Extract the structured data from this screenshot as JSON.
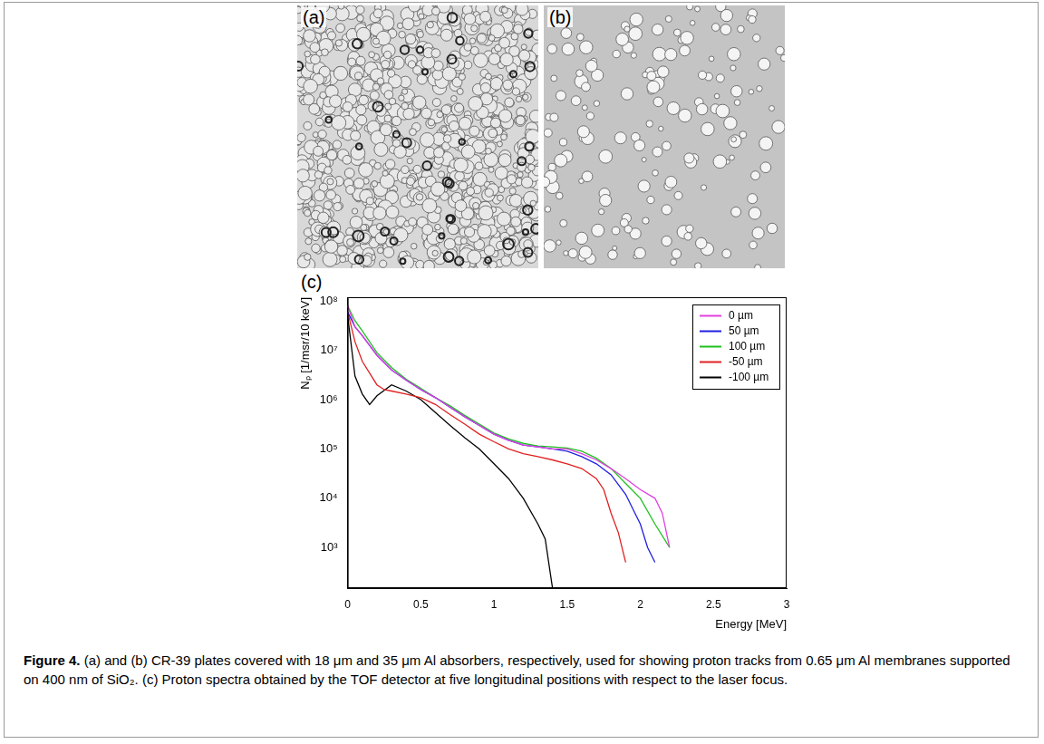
{
  "panels": [
    {
      "label": "(a)"
    },
    {
      "label": "(b)"
    }
  ],
  "chart_label": "(c)",
  "chart_data": {
    "type": "line",
    "x_label": "Energy [MeV]",
    "y_label": "Nₚ [1/msr/10 keV]",
    "xlim": [
      0,
      3
    ],
    "xticks": [
      0,
      0.5,
      1,
      1.5,
      2,
      2.5,
      3
    ],
    "ylim": [
      150,
      120000000
    ],
    "yticks": [
      {
        "value": 1000,
        "label": "10³"
      },
      {
        "value": 10000,
        "label": "10⁴"
      },
      {
        "value": 100000,
        "label": "10⁵"
      },
      {
        "value": 1000000,
        "label": "10⁶"
      },
      {
        "value": 10000000,
        "label": "10⁷"
      },
      {
        "value": 100000000,
        "label": "10⁸"
      }
    ],
    "log": "y",
    "grid": false,
    "legend": "upper right",
    "series": [
      {
        "name": "0 µm",
        "color": "#e040e0",
        "x": [
          0,
          0.05,
          0.1,
          0.2,
          0.3,
          0.4,
          0.5,
          0.6,
          0.7,
          0.8,
          0.9,
          1.0,
          1.1,
          1.2,
          1.3,
          1.4,
          1.5,
          1.6,
          1.7,
          1.8,
          1.9,
          2.0,
          2.1,
          2.15,
          2.2
        ],
        "values": [
          80000000,
          30000000,
          20000000,
          8000000,
          4000000,
          2500000,
          1600000,
          1100000,
          700000,
          450000,
          300000,
          200000,
          150000,
          120000,
          110000,
          100000,
          100000,
          80000,
          60000,
          40000,
          25000,
          15000,
          10000,
          5000,
          1000
        ]
      },
      {
        "name": "50 µm",
        "color": "#2020e0",
        "x": [
          0,
          0.05,
          0.1,
          0.2,
          0.3,
          0.4,
          0.5,
          0.6,
          0.7,
          0.8,
          0.9,
          1.0,
          1.1,
          1.2,
          1.3,
          1.4,
          1.5,
          1.6,
          1.7,
          1.8,
          1.9,
          2.0,
          2.05,
          2.1
        ],
        "values": [
          60000000,
          30000000,
          20000000,
          8000000,
          4000000,
          2500000,
          1600000,
          1100000,
          700000,
          450000,
          300000,
          200000,
          150000,
          120000,
          110000,
          100000,
          90000,
          70000,
          50000,
          30000,
          12000,
          3000,
          1000,
          500
        ]
      },
      {
        "name": "100 µm",
        "color": "#20c020",
        "x": [
          0,
          0.05,
          0.1,
          0.2,
          0.3,
          0.4,
          0.5,
          0.6,
          0.7,
          0.8,
          0.9,
          1.0,
          1.1,
          1.2,
          1.3,
          1.4,
          1.5,
          1.6,
          1.7,
          1.8,
          1.9,
          2.0,
          2.1,
          2.2
        ],
        "values": [
          80000000,
          40000000,
          25000000,
          9000000,
          4500000,
          2600000,
          1700000,
          1100000,
          750000,
          480000,
          320000,
          210000,
          160000,
          130000,
          115000,
          110000,
          105000,
          90000,
          65000,
          40000,
          20000,
          10000,
          3000,
          1000
        ]
      },
      {
        "name": "-50 µm",
        "color": "#e02020",
        "x": [
          0,
          0.05,
          0.1,
          0.2,
          0.25,
          0.3,
          0.4,
          0.5,
          0.6,
          0.7,
          0.8,
          0.9,
          1.0,
          1.1,
          1.2,
          1.3,
          1.4,
          1.5,
          1.6,
          1.7,
          1.75,
          1.8,
          1.85,
          1.9
        ],
        "values": [
          60000000,
          15000000,
          6000000,
          2000000,
          1600000,
          1500000,
          1300000,
          1100000,
          800000,
          500000,
          320000,
          200000,
          140000,
          100000,
          80000,
          70000,
          60000,
          50000,
          40000,
          25000,
          15000,
          5000,
          2000,
          500
        ]
      },
      {
        "name": "-100 µm",
        "color": "#000000",
        "x": [
          0,
          0.05,
          0.1,
          0.15,
          0.2,
          0.3,
          0.4,
          0.5,
          0.6,
          0.7,
          0.8,
          0.9,
          1.0,
          1.1,
          1.2,
          1.3,
          1.35,
          1.4
        ],
        "values": [
          50000000,
          3000000,
          1300000,
          800000,
          1200000,
          2000000,
          1500000,
          1000000,
          550000,
          300000,
          170000,
          100000,
          50000,
          25000,
          10000,
          3000,
          1500,
          150
        ]
      }
    ]
  },
  "caption": {
    "label": "Figure 4.",
    "text": "(a) and (b) CR-39 plates covered with 18 μm and 35 μm Al absorbers, respectively, used for showing proton tracks from 0.65 μm Al membranes supported on 400 nm of SiO₂. (c) Proton spectra obtained by the TOF detector at five longitudinal positions with respect to the laser focus."
  }
}
